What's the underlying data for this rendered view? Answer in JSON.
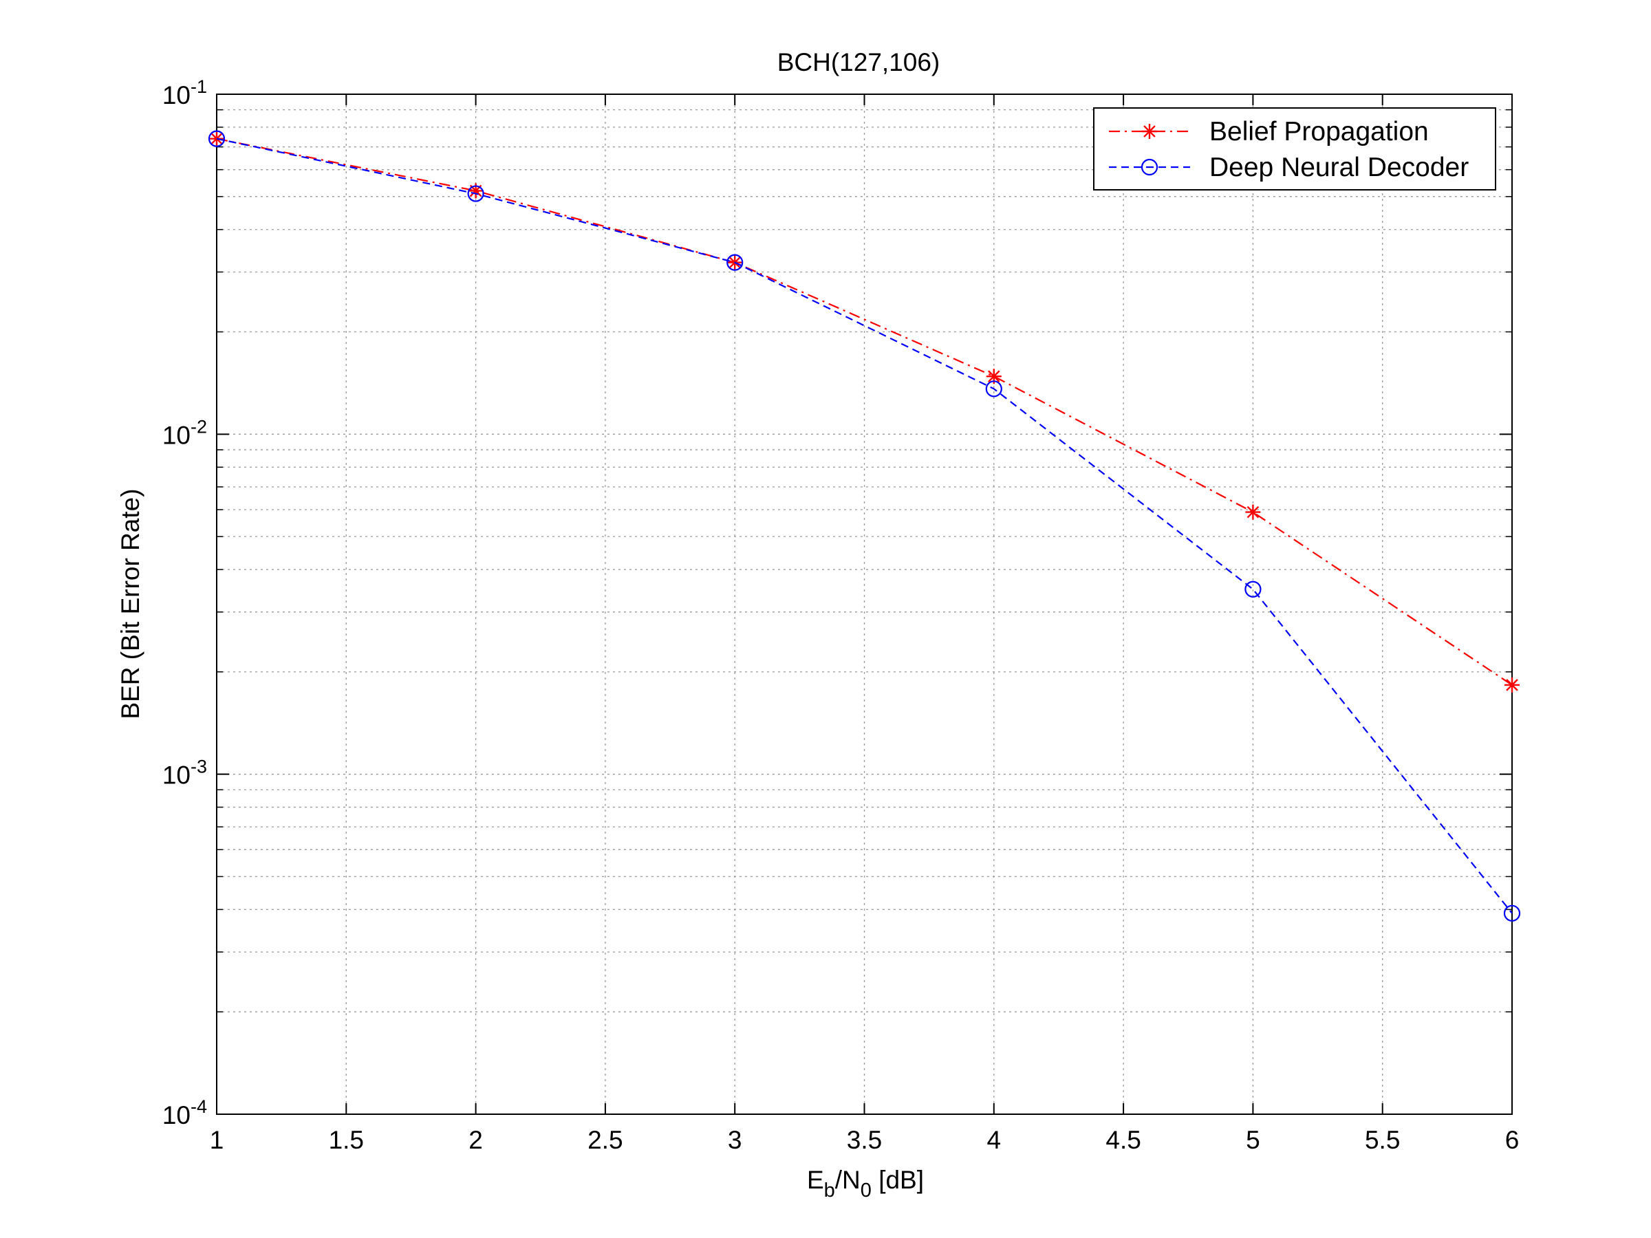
{
  "chart_data": {
    "type": "line",
    "title": "BCH(127,106)",
    "xlabel": {
      "base": "E",
      "sub1": "b",
      "mid": "/N",
      "sub2": "0",
      "unit": " [dB]"
    },
    "ylabel": "BER (Bit Error Rate)",
    "xlim": [
      1,
      6
    ],
    "ylim": [
      0.0001,
      0.1
    ],
    "yscale": "log",
    "grid": true,
    "legend_position": "top-right",
    "x_ticks": [
      "1",
      "1.5",
      "2",
      "2.5",
      "3",
      "3.5",
      "4",
      "4.5",
      "5",
      "5.5",
      "6"
    ],
    "y_ticks": [
      {
        "base": "10",
        "exp": "-1"
      },
      {
        "base": "10",
        "exp": "-2"
      },
      {
        "base": "10",
        "exp": "-3"
      },
      {
        "base": "10",
        "exp": "-4"
      }
    ],
    "x": [
      1,
      2,
      3,
      4,
      5,
      6
    ],
    "series": [
      {
        "name": "Belief Propagation",
        "values": [
          0.074,
          0.052,
          0.032,
          0.0148,
          0.0059,
          0.00183
        ],
        "color": "#ff0000",
        "line_style": "dash-dot",
        "marker": "asterisk"
      },
      {
        "name": "Deep Neural Decoder",
        "values": [
          0.074,
          0.051,
          0.032,
          0.0136,
          0.0035,
          0.00039
        ],
        "color": "#0000ff",
        "line_style": "dashed",
        "marker": "circle"
      }
    ]
  }
}
